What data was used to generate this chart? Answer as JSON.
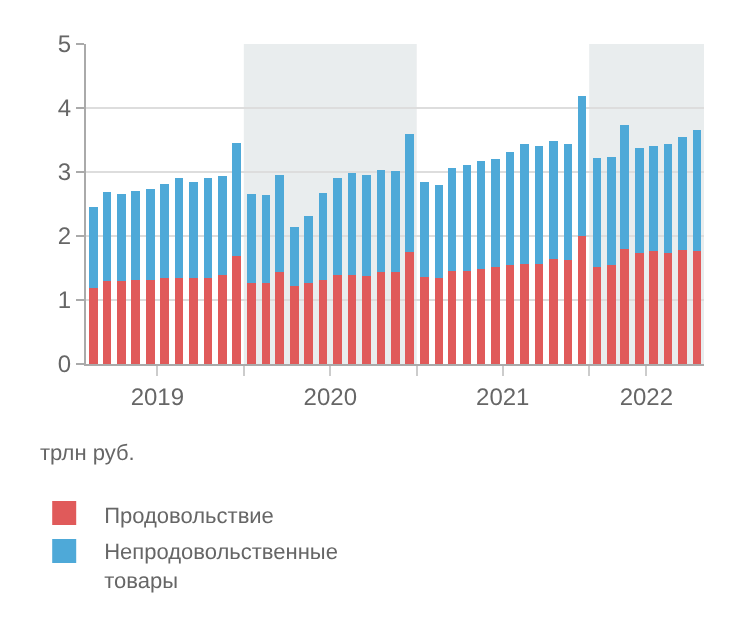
{
  "chart_data": {
    "type": "bar",
    "stacked": true,
    "ylabel": "трлн руб.",
    "x": [
      "2019-02",
      "2019-03",
      "2019-04",
      "2019-05",
      "2019-06",
      "2019-07",
      "2019-08",
      "2019-09",
      "2019-10",
      "2019-11",
      "2019-12",
      "2020-01",
      "2020-02",
      "2020-03",
      "2020-04",
      "2020-05",
      "2020-06",
      "2020-07",
      "2020-08",
      "2020-09",
      "2020-10",
      "2020-11",
      "2020-12",
      "2021-01",
      "2021-02",
      "2021-03",
      "2021-04",
      "2021-05",
      "2021-06",
      "2021-07",
      "2021-08",
      "2021-09",
      "2021-10",
      "2021-11",
      "2021-12",
      "2022-01",
      "2022-02",
      "2022-03",
      "2022-04",
      "2022-05",
      "2022-06",
      "2022-07",
      "2022-08"
    ],
    "series": [
      {
        "name": "Продовольствие",
        "color": "#e05a5a",
        "values": [
          1.19,
          1.3,
          1.29,
          1.31,
          1.31,
          1.34,
          1.35,
          1.34,
          1.35,
          1.39,
          1.68,
          1.27,
          1.27,
          1.43,
          1.22,
          1.27,
          1.32,
          1.39,
          1.39,
          1.37,
          1.43,
          1.43,
          1.75,
          1.36,
          1.35,
          1.46,
          1.46,
          1.49,
          1.52,
          1.54,
          1.57,
          1.57,
          1.64,
          1.63,
          2.0,
          1.52,
          1.54,
          1.79,
          1.73,
          1.76,
          1.74,
          1.78,
          1.76
        ]
      },
      {
        "name": "Непродовольственные товары",
        "color": "#4ea9d8",
        "values": [
          1.26,
          1.38,
          1.37,
          1.39,
          1.43,
          1.47,
          1.55,
          1.5,
          1.55,
          1.54,
          1.78,
          1.39,
          1.37,
          1.52,
          0.92,
          1.04,
          1.35,
          1.51,
          1.6,
          1.58,
          1.6,
          1.59,
          1.85,
          1.48,
          1.44,
          1.61,
          1.65,
          1.68,
          1.69,
          1.77,
          1.86,
          1.83,
          1.84,
          1.8,
          2.18,
          1.7,
          1.7,
          1.95,
          1.65,
          1.65,
          1.69,
          1.76,
          1.89
        ]
      }
    ],
    "xlim": [
      "2019-01-16",
      "2022-08-16"
    ],
    "xticks": [
      {
        "value": "2019-06-16",
        "label": "2019"
      },
      {
        "value": "2019-12-16",
        "label": null
      },
      {
        "value": "2020-06-16",
        "label": "2020"
      },
      {
        "value": "2020-12-16",
        "label": null
      },
      {
        "value": "2021-06-16",
        "label": "2021"
      },
      {
        "value": "2021-12-16",
        "label": null
      },
      {
        "value": "2022-04-16",
        "label": "2022"
      }
    ],
    "ylim": [
      0,
      5
    ],
    "yticks": [
      0,
      1,
      2,
      3,
      4,
      5
    ],
    "grid": "y",
    "legend": "bottom",
    "bands": [
      {
        "axis": "x",
        "from": "2019-12-16",
        "to": "2020-12-16",
        "color": "#e9edee"
      },
      {
        "axis": "x",
        "from": "2021-12-16",
        "to": "2022-08-16",
        "color": "#e9edee"
      }
    ]
  }
}
